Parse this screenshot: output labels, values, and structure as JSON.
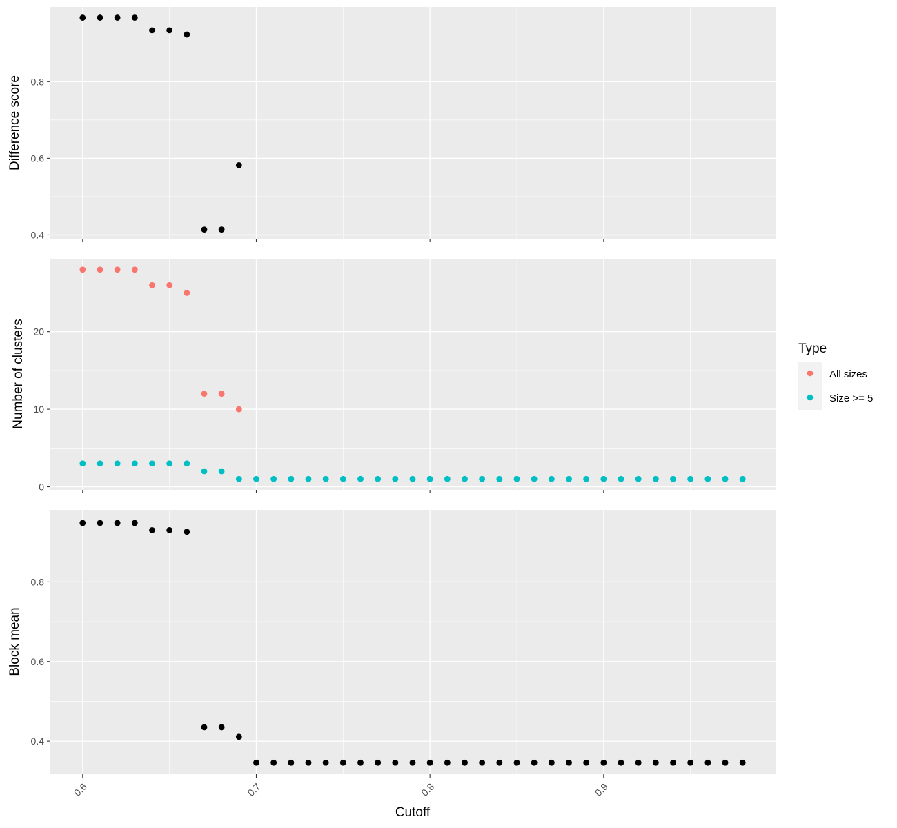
{
  "chart_data": [
    {
      "type": "scatter",
      "panel": "difference",
      "ylabel": "Difference score",
      "xlim": [
        0.581,
        0.999
      ],
      "ylim": [
        0.39,
        0.995
      ],
      "yticks": [
        {
          "value": 0.4,
          "label": "0.4"
        },
        {
          "value": 0.6,
          "label": "0.6"
        },
        {
          "value": 0.8,
          "label": "0.8"
        }
      ],
      "series": [
        {
          "color": "#000000",
          "x": [
            0.6,
            0.61,
            0.62,
            0.63,
            0.64,
            0.65,
            0.66,
            0.67,
            0.68,
            0.69
          ],
          "y": [
            0.967,
            0.967,
            0.967,
            0.967,
            0.934,
            0.934,
            0.923,
            0.414,
            0.414,
            0.582
          ]
        }
      ]
    },
    {
      "type": "scatter",
      "panel": "clusters",
      "ylabel": "Number of clusters",
      "xlim": [
        0.581,
        0.999
      ],
      "ylim": [
        -0.4,
        29.4
      ],
      "yticks": [
        {
          "value": 0,
          "label": "0"
        },
        {
          "value": 10,
          "label": "10"
        },
        {
          "value": 20,
          "label": "20"
        }
      ],
      "series": [
        {
          "name": "All sizes",
          "color": "#F8766D",
          "x": [
            0.6,
            0.61,
            0.62,
            0.63,
            0.64,
            0.65,
            0.66,
            0.67,
            0.68,
            0.69
          ],
          "y": [
            28,
            28,
            28,
            28,
            26,
            26,
            25,
            12,
            12,
            10
          ]
        },
        {
          "name": "Size >= 5",
          "color": "#00BFC4",
          "x": [
            0.6,
            0.61,
            0.62,
            0.63,
            0.64,
            0.65,
            0.66,
            0.67,
            0.68,
            0.69,
            0.7,
            0.71,
            0.72,
            0.73,
            0.74,
            0.75,
            0.76,
            0.77,
            0.78,
            0.79,
            0.8,
            0.81,
            0.82,
            0.83,
            0.84,
            0.85,
            0.86,
            0.87,
            0.88,
            0.89,
            0.9,
            0.91,
            0.92,
            0.93,
            0.94,
            0.95,
            0.96,
            0.97,
            0.98
          ],
          "y": [
            3,
            3,
            3,
            3,
            3,
            3,
            3,
            2,
            2,
            1,
            1,
            1,
            1,
            1,
            1,
            1,
            1,
            1,
            1,
            1,
            1,
            1,
            1,
            1,
            1,
            1,
            1,
            1,
            1,
            1,
            1,
            1,
            1,
            1,
            1,
            1,
            1,
            1,
            1
          ]
        }
      ]
    },
    {
      "type": "scatter",
      "panel": "block",
      "ylabel": "Block mean",
      "xlabel": "Cutoff",
      "xlim": [
        0.581,
        0.999
      ],
      "ylim": [
        0.317,
        0.981
      ],
      "xticks": [
        {
          "value": 0.6,
          "label": "0.6"
        },
        {
          "value": 0.7,
          "label": "0.7"
        },
        {
          "value": 0.8,
          "label": "0.8"
        },
        {
          "value": 0.9,
          "label": "0.9"
        }
      ],
      "yticks": [
        {
          "value": 0.4,
          "label": "0.4"
        },
        {
          "value": 0.6,
          "label": "0.6"
        },
        {
          "value": 0.8,
          "label": "0.8"
        }
      ],
      "series": [
        {
          "color": "#000000",
          "x": [
            0.6,
            0.61,
            0.62,
            0.63,
            0.64,
            0.65,
            0.66,
            0.67,
            0.68,
            0.69,
            0.7,
            0.71,
            0.72,
            0.73,
            0.74,
            0.75,
            0.76,
            0.77,
            0.78,
            0.79,
            0.8,
            0.81,
            0.82,
            0.83,
            0.84,
            0.85,
            0.86,
            0.87,
            0.88,
            0.89,
            0.9,
            0.91,
            0.92,
            0.93,
            0.94,
            0.95,
            0.96,
            0.97,
            0.98
          ],
          "y": [
            0.948,
            0.948,
            0.948,
            0.948,
            0.93,
            0.93,
            0.926,
            0.435,
            0.435,
            0.411,
            0.346,
            0.346,
            0.346,
            0.346,
            0.346,
            0.346,
            0.346,
            0.346,
            0.346,
            0.346,
            0.346,
            0.346,
            0.346,
            0.346,
            0.346,
            0.346,
            0.346,
            0.346,
            0.346,
            0.346,
            0.346,
            0.346,
            0.346,
            0.346,
            0.346,
            0.346,
            0.346,
            0.346,
            0.346
          ]
        }
      ]
    }
  ],
  "legend": {
    "title": "Type",
    "placement": "right",
    "items": [
      {
        "label": "All sizes",
        "color": "#F8766D"
      },
      {
        "label": "Size >= 5",
        "color": "#00BFC4"
      }
    ]
  },
  "style": {
    "panel_background": "#EBEBEB",
    "gridline": "#FFFFFF"
  }
}
